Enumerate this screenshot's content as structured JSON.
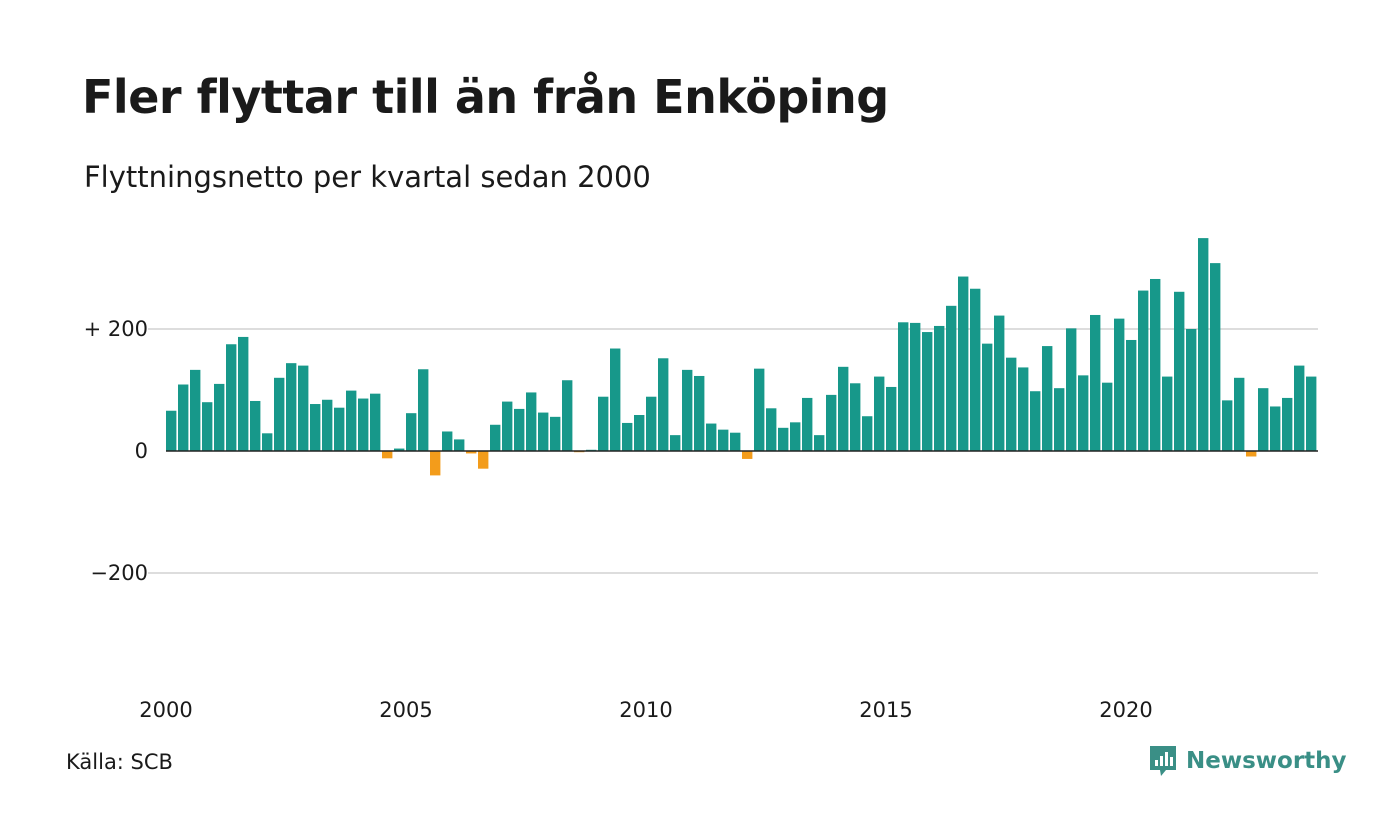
{
  "title": "Fler flyttar till än från Enköping",
  "subtitle": "Flyttningsnetto per kvartal sedan 2000",
  "source": "Källa: SCB",
  "brand": {
    "name": "Newsworthy",
    "icon": "newsworthy-logo-icon",
    "color": "#3a8f86"
  },
  "colors": {
    "positive": "#17988a",
    "negative": "#f39c1b",
    "grid": "#dddddd",
    "zero": "#222222"
  },
  "chart_data": {
    "type": "bar",
    "title": "Fler flyttar till än från Enköping",
    "subtitle": "Flyttningsnetto per kvartal sedan 2000",
    "xlabel": "",
    "ylabel": "",
    "ylim": [
      -350,
      350
    ],
    "yticks": [
      {
        "value": 200,
        "label": "+ 200"
      },
      {
        "value": 0,
        "label": "0"
      },
      {
        "value": -200,
        "label": "−200"
      }
    ],
    "xticks": [
      "2000",
      "2005",
      "2010",
      "2015",
      "2020"
    ],
    "start": "2000 Q1",
    "frequency": "quarterly",
    "grid": true,
    "legend": "none",
    "values": [
      66,
      109,
      133,
      80,
      110,
      175,
      187,
      82,
      29,
      120,
      144,
      140,
      77,
      84,
      71,
      99,
      86,
      94,
      -12,
      4,
      62,
      134,
      -40,
      32,
      19,
      -4,
      -29,
      43,
      81,
      69,
      96,
      63,
      56,
      116,
      -2,
      2,
      89,
      168,
      46,
      59,
      89,
      152,
      26,
      133,
      123,
      45,
      35,
      30,
      -13,
      135,
      70,
      38,
      47,
      87,
      26,
      92,
      138,
      111,
      57,
      122,
      105,
      211,
      210,
      195,
      205,
      238,
      286,
      266,
      176,
      222,
      153,
      137,
      98,
      172,
      103,
      201,
      124,
      223,
      112,
      217,
      182,
      263,
      282,
      122,
      261,
      200,
      349,
      308,
      83,
      120,
      -9,
      103,
      73,
      87,
      140,
      122
    ]
  }
}
